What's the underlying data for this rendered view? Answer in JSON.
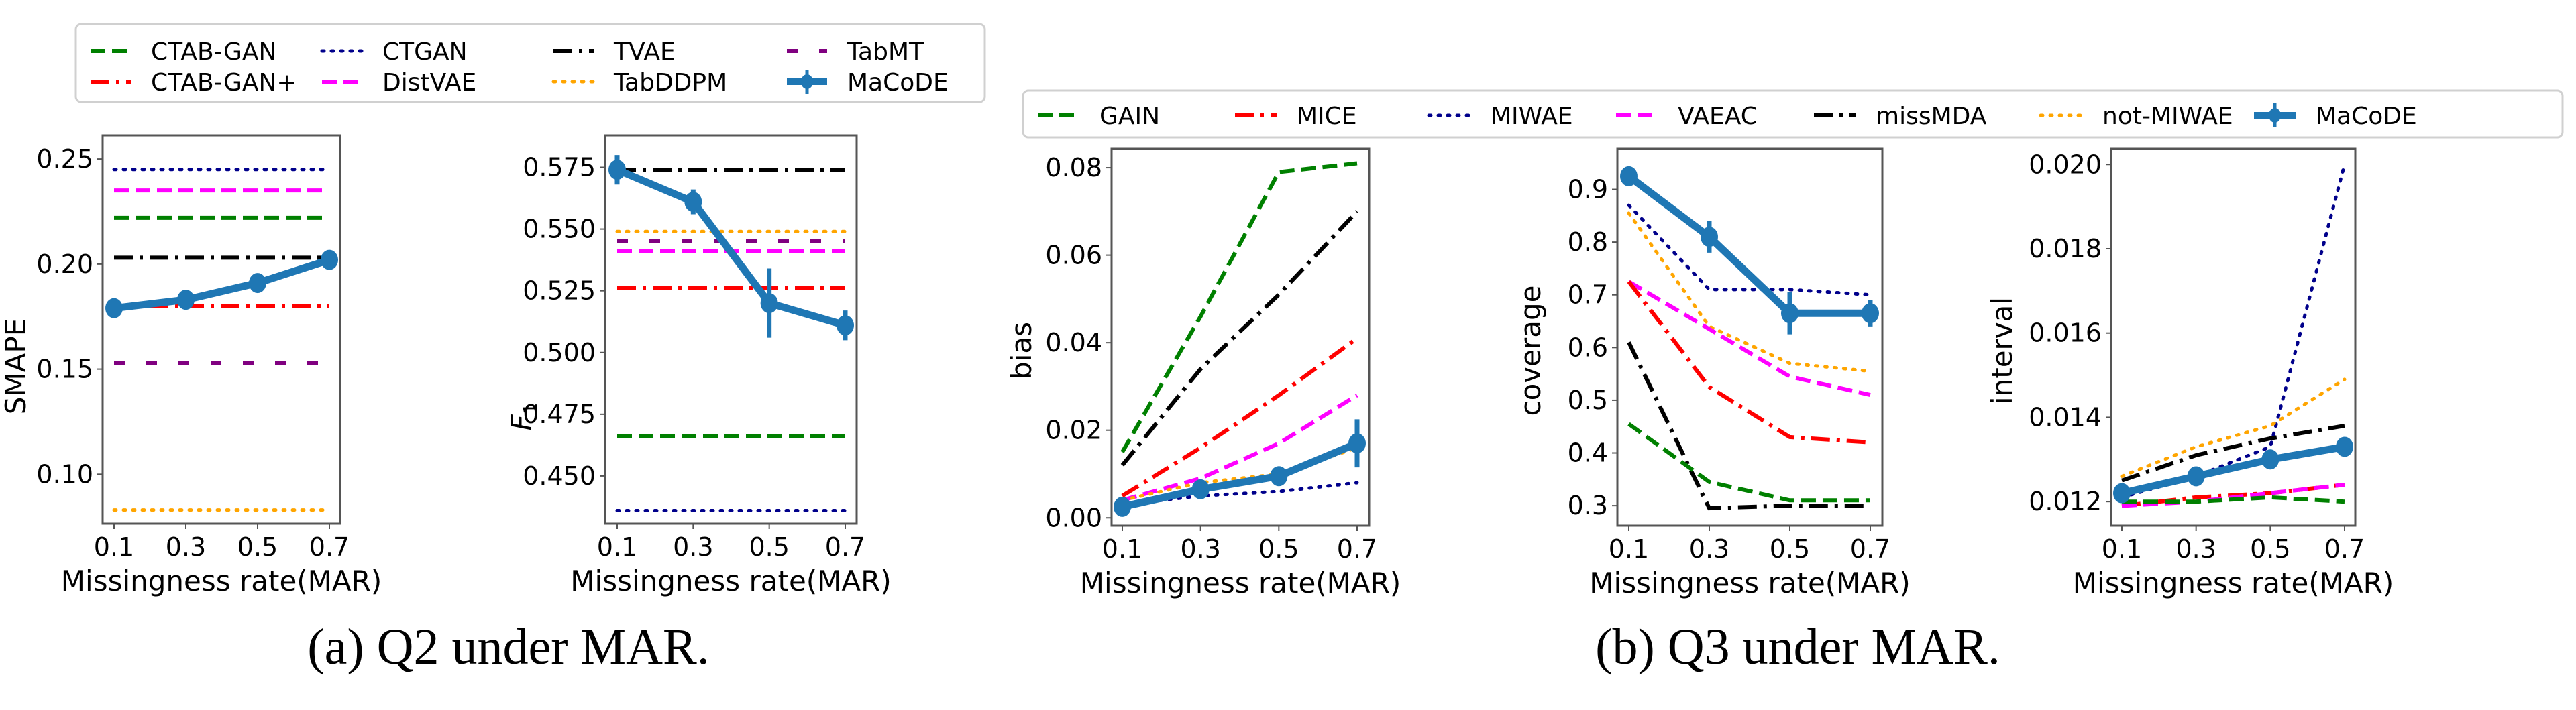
{
  "styles": {
    "CTAB-GAN": {
      "color": "#008000",
      "dash": "dashed"
    },
    "CTGAN": {
      "color": "#00008b",
      "dash": "dotted"
    },
    "TVAE": {
      "color": "#000000",
      "dash": "dashdot"
    },
    "TabMT": {
      "color": "#800080",
      "dash": "loosedash"
    },
    "CTAB-GAN+": {
      "color": "#ff0000",
      "dash": "dashdot"
    },
    "DistVAE": {
      "color": "#ff00ff",
      "dash": "dashed"
    },
    "TabDDPM": {
      "color": "#ffa500",
      "dash": "dotted"
    },
    "GAIN": {
      "color": "#008000",
      "dash": "dashed"
    },
    "MICE": {
      "color": "#ff0000",
      "dash": "dashdot"
    },
    "MIWAE": {
      "color": "#00008b",
      "dash": "dotted"
    },
    "VAEAC": {
      "color": "#ff00ff",
      "dash": "dashed"
    },
    "missMDA": {
      "color": "#000000",
      "dash": "dashdot"
    },
    "not-MIWAE": {
      "color": "#ffa500",
      "dash": "dotted"
    },
    "MaCoDE": {
      "color": "#1f77b4",
      "dash": "solid-marker"
    }
  },
  "legends": [
    {
      "id": "legend-a",
      "placement": "top-left",
      "columns": 4,
      "entries": [
        "CTAB-GAN",
        "CTAB-GAN+",
        "CTGAN",
        "DistVAE",
        "TVAE",
        "TabDDPM",
        "TabMT",
        "MaCoDE"
      ]
    },
    {
      "id": "legend-b",
      "placement": "top-right",
      "columns": 7,
      "entries": [
        "GAIN",
        "MICE",
        "MIWAE",
        "VAEAC",
        "missMDA",
        "not-MIWAE",
        "MaCoDE"
      ]
    }
  ],
  "captions": [
    "(a) Q2 under MAR.",
    "(b) Q3 under MAR."
  ],
  "chart_data": [
    {
      "type": "line",
      "id": "smape",
      "panel": "a",
      "title": "",
      "xlabel": "Missingness rate(MAR)",
      "ylabel": "SMAPE",
      "x": [
        0.1,
        0.3,
        0.5,
        0.7
      ],
      "xticks": [
        "0.1",
        "0.3",
        "0.5",
        "0.7"
      ],
      "yticks": [
        0.1,
        0.15,
        0.2,
        0.25
      ],
      "ytick_labels": [
        "0.10",
        "0.15",
        "0.20",
        "0.25"
      ],
      "ylim": [
        0.0765,
        0.2612
      ],
      "grid": false,
      "series": [
        {
          "name": "CTGAN",
          "values": [
            0.245,
            0.245,
            0.245,
            0.245
          ]
        },
        {
          "name": "DistVAE",
          "values": [
            0.235,
            0.235,
            0.235,
            0.235
          ]
        },
        {
          "name": "CTAB-GAN",
          "values": [
            0.222,
            0.222,
            0.222,
            0.222
          ]
        },
        {
          "name": "TVAE",
          "values": [
            0.203,
            0.203,
            0.203,
            0.203
          ]
        },
        {
          "name": "CTAB-GAN+",
          "values": [
            0.18,
            0.18,
            0.18,
            0.18
          ]
        },
        {
          "name": "TabMT",
          "values": [
            0.153,
            0.153,
            0.153,
            0.153
          ]
        },
        {
          "name": "TabDDPM",
          "values": [
            0.083,
            0.083,
            0.083,
            0.083
          ]
        },
        {
          "name": "MaCoDE",
          "values": [
            0.179,
            0.183,
            0.191,
            0.202
          ],
          "err": [
            0.001,
            0.001,
            0.001,
            0.001
          ]
        }
      ]
    },
    {
      "type": "line",
      "id": "f1",
      "panel": "a",
      "title": "",
      "xlabel": "Missingness rate(MAR)",
      "ylabel": "F1",
      "x": [
        0.1,
        0.3,
        0.5,
        0.7
      ],
      "xticks": [
        "0.1",
        "0.3",
        "0.5",
        "0.7"
      ],
      "yticks": [
        0.45,
        0.475,
        0.5,
        0.525,
        0.55,
        0.575
      ],
      "ytick_labels": [
        "0.450",
        "0.475",
        "0.500",
        "0.525",
        "0.550",
        "0.575"
      ],
      "ylim": [
        0.4307,
        0.5879
      ],
      "grid": false,
      "series": [
        {
          "name": "TVAE",
          "values": [
            0.574,
            0.574,
            0.574,
            0.574
          ]
        },
        {
          "name": "TabDDPM",
          "values": [
            0.549,
            0.549,
            0.549,
            0.549
          ]
        },
        {
          "name": "TabMT",
          "values": [
            0.545,
            0.545,
            0.545,
            0.545
          ]
        },
        {
          "name": "DistVAE",
          "values": [
            0.541,
            0.541,
            0.541,
            0.541
          ]
        },
        {
          "name": "CTAB-GAN+",
          "values": [
            0.526,
            0.526,
            0.526,
            0.526
          ]
        },
        {
          "name": "CTAB-GAN",
          "values": [
            0.466,
            0.466,
            0.466,
            0.466
          ]
        },
        {
          "name": "CTGAN",
          "values": [
            0.436,
            0.436,
            0.436,
            0.436
          ]
        },
        {
          "name": "MaCoDE",
          "values": [
            0.574,
            0.561,
            0.52,
            0.511
          ],
          "err": [
            0.006,
            0.005,
            0.014,
            0.006
          ]
        }
      ]
    },
    {
      "type": "line",
      "id": "bias",
      "panel": "b",
      "title": "",
      "xlabel": "Missingness rate(MAR)",
      "ylabel": "bias",
      "x": [
        0.1,
        0.3,
        0.5,
        0.7
      ],
      "xticks": [
        "0.1",
        "0.3",
        "0.5",
        "0.7"
      ],
      "yticks": [
        0.0,
        0.02,
        0.04,
        0.06,
        0.08
      ],
      "ytick_labels": [
        "0.00",
        "0.02",
        "0.04",
        "0.06",
        "0.08"
      ],
      "ylim": [
        -0.0018,
        0.0843
      ],
      "grid": false,
      "series": [
        {
          "name": "GAIN",
          "values": [
            0.015,
            0.046,
            0.079,
            0.081
          ]
        },
        {
          "name": "missMDA",
          "values": [
            0.012,
            0.034,
            0.051,
            0.07
          ]
        },
        {
          "name": "MICE",
          "values": [
            0.005,
            0.016,
            0.028,
            0.041
          ]
        },
        {
          "name": "VAEAC",
          "values": [
            0.004,
            0.009,
            0.017,
            0.028
          ]
        },
        {
          "name": "not-MIWAE",
          "values": [
            0.004,
            0.008,
            0.01,
            0.016
          ]
        },
        {
          "name": "MIWAE",
          "values": [
            0.003,
            0.005,
            0.006,
            0.008
          ]
        },
        {
          "name": "MaCoDE",
          "values": [
            0.0025,
            0.0065,
            0.0095,
            0.017
          ],
          "err": [
            0.0005,
            0.0005,
            0.0005,
            0.0055
          ]
        }
      ]
    },
    {
      "type": "line",
      "id": "coverage",
      "panel": "b",
      "title": "",
      "xlabel": "Missingness rate(MAR)",
      "ylabel": "coverage",
      "x": [
        0.1,
        0.3,
        0.5,
        0.7
      ],
      "xticks": [
        "0.1",
        "0.3",
        "0.5",
        "0.7"
      ],
      "yticks": [
        0.3,
        0.4,
        0.5,
        0.6,
        0.7,
        0.8,
        0.9
      ],
      "ytick_labels": [
        "0.3",
        "0.4",
        "0.5",
        "0.6",
        "0.7",
        "0.8",
        "0.9"
      ],
      "ylim": [
        0.262,
        0.977
      ],
      "grid": false,
      "series": [
        {
          "name": "MIWAE",
          "values": [
            0.87,
            0.71,
            0.71,
            0.7
          ]
        },
        {
          "name": "not-MIWAE",
          "values": [
            0.855,
            0.64,
            0.57,
            0.555
          ]
        },
        {
          "name": "VAEAC",
          "values": [
            0.725,
            0.635,
            0.545,
            0.51
          ]
        },
        {
          "name": "MICE",
          "values": [
            0.725,
            0.525,
            0.43,
            0.42
          ]
        },
        {
          "name": "missMDA",
          "values": [
            0.61,
            0.295,
            0.3,
            0.3
          ]
        },
        {
          "name": "GAIN",
          "values": [
            0.455,
            0.345,
            0.31,
            0.31
          ]
        },
        {
          "name": "MaCoDE",
          "values": [
            0.925,
            0.81,
            0.665,
            0.665
          ],
          "err": [
            0.01,
            0.03,
            0.04,
            0.025
          ]
        }
      ]
    },
    {
      "type": "line",
      "id": "interval",
      "panel": "b",
      "title": "",
      "xlabel": "Missingness rate(MAR)",
      "ylabel": "interval",
      "x": [
        0.1,
        0.3,
        0.5,
        0.7
      ],
      "xticks": [
        "0.1",
        "0.3",
        "0.5",
        "0.7"
      ],
      "yticks": [
        0.012,
        0.014,
        0.016,
        0.018,
        0.02
      ],
      "ytick_labels": [
        "0.012",
        "0.014",
        "0.016",
        "0.018",
        "0.020"
      ],
      "ylim": [
        0.01143,
        0.02037
      ],
      "grid": false,
      "series": [
        {
          "name": "MIWAE",
          "values": [
            0.0121,
            0.0126,
            0.0133,
            0.02
          ]
        },
        {
          "name": "not-MIWAE",
          "values": [
            0.0126,
            0.0133,
            0.0138,
            0.0149
          ]
        },
        {
          "name": "missMDA",
          "values": [
            0.0125,
            0.0131,
            0.0135,
            0.0138
          ]
        },
        {
          "name": "MICE",
          "values": [
            0.0119,
            0.0121,
            0.0122,
            0.0124
          ]
        },
        {
          "name": "VAEAC",
          "values": [
            0.0119,
            0.012,
            0.0122,
            0.0124
          ]
        },
        {
          "name": "GAIN",
          "values": [
            0.012,
            0.012,
            0.0121,
            0.012
          ]
        },
        {
          "name": "MaCoDE",
          "values": [
            0.0122,
            0.0126,
            0.013,
            0.0133
          ],
          "err": [
            0.0001,
            0.0001,
            0.0001,
            0.0001
          ]
        }
      ]
    }
  ]
}
